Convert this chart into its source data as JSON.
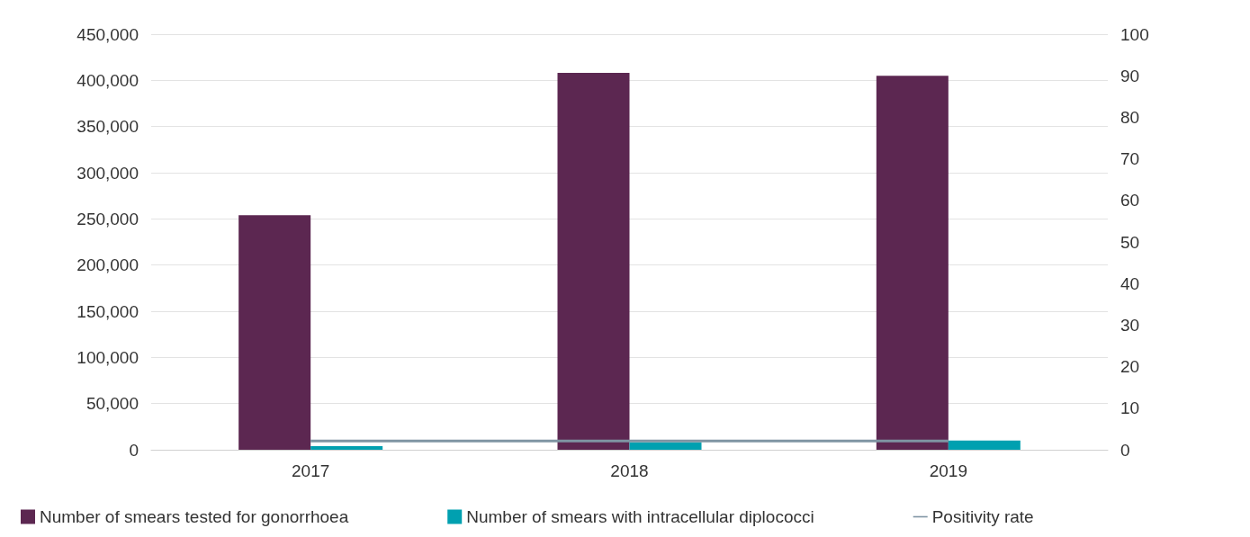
{
  "chart_data": {
    "type": "bar",
    "categories": [
      "2017",
      "2018",
      "2019"
    ],
    "series": [
      {
        "name": "Number of smears tested for gonorrhoea",
        "color": "#5c2751",
        "values": [
          254000,
          408000,
          405000
        ]
      },
      {
        "name": "Number of smears with intracellular diplococci",
        "color": "#00a0b0",
        "values": [
          4000,
          8000,
          10000
        ]
      },
      {
        "name": "Positivity rate",
        "type": "line",
        "axis": "y2",
        "color": "#7f95a3",
        "values": [
          2.1,
          2.1,
          2.1
        ]
      }
    ],
    "ylim": [
      0,
      450000
    ],
    "yticks": [
      0,
      {
        "value": 50000,
        "label": "50,000"
      },
      {
        "value": 100000,
        "label": "100,000"
      },
      {
        "value": 150000,
        "label": "150,000"
      },
      {
        "value": 200000,
        "label": "200,000"
      },
      {
        "value": 250000,
        "label": "250,000"
      },
      {
        "value": 300000,
        "label": "300,000"
      },
      {
        "value": 350000,
        "label": "350,000"
      },
      {
        "value": 400000,
        "label": "400,000"
      },
      {
        "value": 450000,
        "label": "450,000"
      }
    ],
    "y2lim": [
      0,
      100
    ],
    "y2ticks": [
      0,
      10,
      20,
      30,
      40,
      50,
      60,
      70,
      80,
      90,
      100
    ],
    "grid": "y",
    "legend": "bottom",
    "marker": "none"
  }
}
